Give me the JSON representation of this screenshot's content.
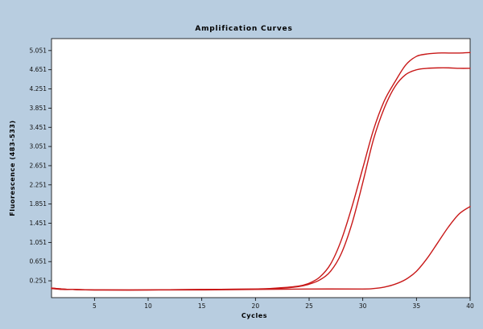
{
  "chart_data": {
    "type": "line",
    "title": "Amplification Curves",
    "xlabel": "Cycles",
    "ylabel": "Fluorescence (483-533)",
    "xlim": [
      1,
      40
    ],
    "ylim": [
      -0.1,
      5.3
    ],
    "xticks": [
      5,
      10,
      15,
      20,
      25,
      30,
      35,
      40
    ],
    "xtick_labels": [
      "5",
      "10",
      "15",
      "20",
      "25",
      "30",
      "35",
      "40"
    ],
    "yticks": [
      0.251,
      0.651,
      1.051,
      1.451,
      1.851,
      2.251,
      2.651,
      3.051,
      3.451,
      3.851,
      4.251,
      4.651,
      5.051
    ],
    "ytick_labels": [
      "0.251",
      "0.651",
      "1.051",
      "1.451",
      "1.851",
      "2.251",
      "2.651",
      "3.051",
      "3.451",
      "3.851",
      "4.251",
      "4.651",
      "5.051"
    ],
    "grid": false,
    "legend": false,
    "colors": {
      "curve": "#c81818",
      "background": "#b8cde0",
      "plot": "#ffffff"
    },
    "series": [
      {
        "x": [
          1,
          2,
          3,
          5,
          10,
          15,
          20,
          22,
          24,
          25,
          26,
          27,
          28,
          29,
          30,
          31,
          32,
          33,
          34,
          35,
          36,
          37,
          38,
          39,
          40
        ],
        "values": [
          0.1,
          0.08,
          0.07,
          0.06,
          0.06,
          0.07,
          0.08,
          0.1,
          0.14,
          0.2,
          0.33,
          0.6,
          1.1,
          1.8,
          2.6,
          3.4,
          4.0,
          4.4,
          4.75,
          4.93,
          4.98,
          5.0,
          5.0,
          5.0,
          5.01
        ]
      },
      {
        "x": [
          1,
          2,
          3,
          5,
          10,
          15,
          20,
          22,
          24,
          25,
          26,
          27,
          28,
          29,
          30,
          31,
          32,
          33,
          34,
          35,
          36,
          37,
          38,
          39,
          40
        ],
        "values": [
          0.09,
          0.07,
          0.07,
          0.06,
          0.06,
          0.07,
          0.08,
          0.09,
          0.13,
          0.18,
          0.27,
          0.45,
          0.82,
          1.45,
          2.3,
          3.2,
          3.85,
          4.3,
          4.55,
          4.65,
          4.68,
          4.69,
          4.69,
          4.68,
          4.68
        ]
      },
      {
        "x": [
          1,
          2,
          3,
          5,
          10,
          15,
          20,
          25,
          30,
          31,
          32,
          33,
          34,
          35,
          36,
          37,
          38,
          39,
          40
        ],
        "values": [
          0.1,
          0.08,
          0.07,
          0.06,
          0.06,
          0.06,
          0.07,
          0.08,
          0.08,
          0.09,
          0.12,
          0.18,
          0.28,
          0.45,
          0.72,
          1.05,
          1.38,
          1.65,
          1.8
        ]
      }
    ]
  }
}
